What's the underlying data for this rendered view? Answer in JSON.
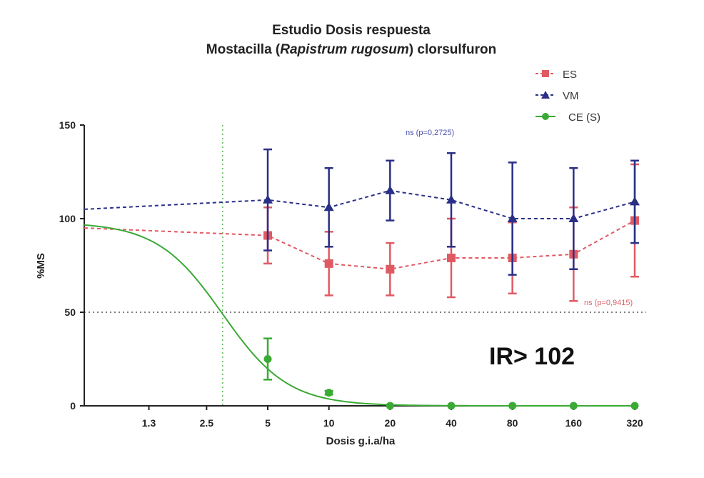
{
  "chart_data": {
    "type": "line",
    "title_line1": "Estudio Dosis respuesta",
    "title_line2_a": "Mostacilla (",
    "title_line2_italic": "Rapistrum rugosum",
    "title_line2_b": ") clorsulfuron",
    "xlabel": "Dosis  g.i.a/ha",
    "ylabel": "%MS",
    "x_ticks": [
      "1.3",
      "2.5",
      "5",
      "10",
      "20",
      "40",
      "80",
      "160",
      "320"
    ],
    "y_ticks": [
      "0",
      "50",
      "100",
      "150"
    ],
    "ylim": [
      0,
      150
    ],
    "reference_line_y": 50,
    "reference_line_x": 3.0,
    "series": [
      {
        "name": "ES",
        "color": "#e05a63",
        "marker": "square",
        "fit_start": 95,
        "x": [
          5,
          10,
          20,
          40,
          80,
          160,
          320
        ],
        "y": [
          91,
          76,
          73,
          79,
          79,
          81,
          99
        ],
        "err": [
          15,
          17,
          14,
          21,
          19,
          25,
          30
        ]
      },
      {
        "name": "VM",
        "color": "#2a2f86",
        "marker": "triangle",
        "fit_start": 105,
        "x": [
          5,
          10,
          20,
          40,
          80,
          160,
          320
        ],
        "y": [
          110,
          106,
          115,
          110,
          100,
          100,
          109
        ],
        "err": [
          27,
          21,
          16,
          25,
          30,
          27,
          22
        ]
      },
      {
        "name": "CE (S)",
        "color": "#3aaa35",
        "marker": "circle",
        "x": [
          5,
          10,
          20,
          40,
          80,
          160,
          320
        ],
        "y": [
          25,
          7,
          0,
          0,
          0,
          0,
          0
        ],
        "err": [
          11,
          1,
          0,
          0,
          0,
          0,
          0
        ],
        "fit_top": 98,
        "fit_ec50": 3.0,
        "fit_hill": 2.7
      }
    ],
    "annotations": {
      "vm_note": "ns (p=0,2725)",
      "es_note": "ns (p=0,9415)",
      "ir_label": "IR> 102"
    },
    "legend_position": "top-right"
  }
}
